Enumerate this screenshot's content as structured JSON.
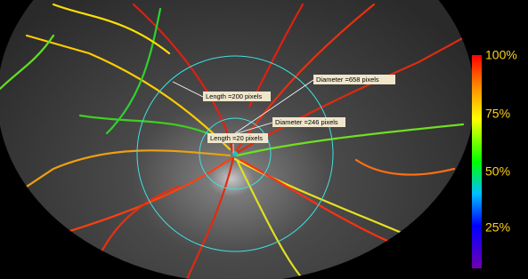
{
  "annotations": [
    "Diameter =658 pixels",
    "Length =200 pixels",
    "Diameter =246 pixels",
    "Length =20 pixels"
  ],
  "colorbar": {
    "ticks": [
      "100%",
      "75%",
      "50%",
      "25%"
    ]
  }
}
